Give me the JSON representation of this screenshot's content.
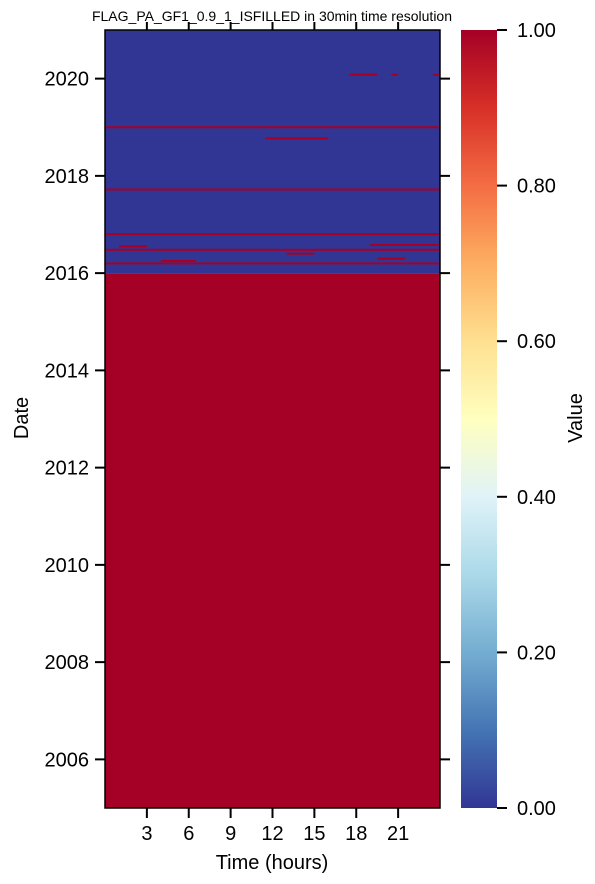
{
  "chart_data": {
    "type": "heatmap",
    "title": "FLAG_PA_GF1_0.9_1_ISFILLED in 30min time resolution",
    "xlabel": "Time (hours)",
    "ylabel": "Date",
    "x_ticks": [
      3,
      6,
      9,
      12,
      15,
      18,
      21
    ],
    "xlim": [
      0,
      24
    ],
    "y_ticks": [
      2006,
      2008,
      2010,
      2012,
      2014,
      2016,
      2018,
      2020
    ],
    "ylim": [
      2005.0,
      2021.0
    ],
    "colorbar": {
      "label": "Value",
      "range": [
        0,
        1
      ],
      "ticks": [
        "0.00",
        "0.20",
        "0.40",
        "0.60",
        "0.80",
        "1.00"
      ],
      "colormap": "RdYlBu_r",
      "stops": [
        {
          "v": 0.0,
          "color": "#313695"
        },
        {
          "v": 0.1,
          "color": "#4575b4"
        },
        {
          "v": 0.2,
          "color": "#74add1"
        },
        {
          "v": 0.3,
          "color": "#abd9e9"
        },
        {
          "v": 0.4,
          "color": "#e0f3f8"
        },
        {
          "v": 0.5,
          "color": "#ffffbf"
        },
        {
          "v": 0.6,
          "color": "#fee090"
        },
        {
          "v": 0.7,
          "color": "#fdae61"
        },
        {
          "v": 0.8,
          "color": "#f46d43"
        },
        {
          "v": 0.9,
          "color": "#d73027"
        },
        {
          "v": 1.0,
          "color": "#a50026"
        }
      ]
    },
    "regions": [
      {
        "date_from": 2005.0,
        "date_to": 2016.0,
        "time_from": 0,
        "time_to": 24,
        "value": 1
      },
      {
        "date_from": 2016.0,
        "date_to": 2021.0,
        "time_from": 0,
        "time_to": 24,
        "value": 0
      }
    ],
    "filled_lines": [
      {
        "date": 2016.2,
        "time_from": 0,
        "time_to": 24,
        "value": 1
      },
      {
        "date": 2016.25,
        "time_from": 4,
        "time_to": 6.5,
        "value": 1
      },
      {
        "date": 2016.3,
        "time_from": 19.5,
        "time_to": 21.5,
        "value": 1
      },
      {
        "date": 2016.4,
        "time_from": 13,
        "time_to": 15,
        "value": 1
      },
      {
        "date": 2016.48,
        "time_from": 0,
        "time_to": 24,
        "value": 1
      },
      {
        "date": 2016.55,
        "time_from": 1,
        "time_to": 3,
        "value": 1
      },
      {
        "date": 2016.58,
        "time_from": 19,
        "time_to": 24,
        "value": 1
      },
      {
        "date": 2016.8,
        "time_from": 0,
        "time_to": 24,
        "value": 1
      },
      {
        "date": 2017.72,
        "time_from": 0,
        "time_to": 24,
        "value": 1
      },
      {
        "date": 2018.77,
        "time_from": 11.5,
        "time_to": 16,
        "value": 1
      },
      {
        "date": 2019.0,
        "time_from": 0,
        "time_to": 24,
        "value": 1
      },
      {
        "date": 2020.08,
        "time_from": 17.5,
        "time_to": 19.5,
        "value": 1
      },
      {
        "date": 2020.08,
        "time_from": 20.5,
        "time_to": 21,
        "value": 1
      },
      {
        "date": 2020.08,
        "time_from": 23.5,
        "time_to": 24,
        "value": 1
      }
    ]
  }
}
